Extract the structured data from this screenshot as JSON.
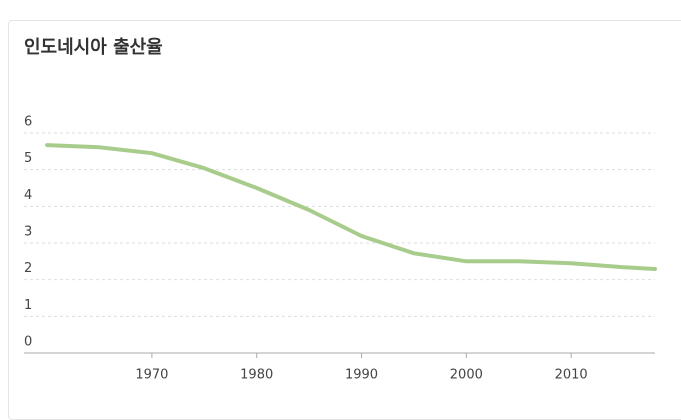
{
  "chart_data": {
    "type": "line",
    "title": "인도네시아 출산율",
    "x": [
      1960,
      1965,
      1970,
      1975,
      1980,
      1985,
      1990,
      1995,
      2000,
      2005,
      2010,
      2015,
      2018
    ],
    "series": [
      {
        "name": "출산율",
        "color": "#a8cc8c",
        "values": [
          5.67,
          5.61,
          5.45,
          5.04,
          4.5,
          3.9,
          3.19,
          2.72,
          2.5,
          2.5,
          2.45,
          2.34,
          2.29
        ]
      }
    ],
    "xlim": [
      1959,
      2018
    ],
    "xticks": [
      1970,
      1980,
      1990,
      2000,
      2010
    ],
    "ylim": [
      0,
      6
    ],
    "yticks": [
      0,
      1,
      2,
      3,
      4,
      5,
      6
    ],
    "grid": true
  }
}
